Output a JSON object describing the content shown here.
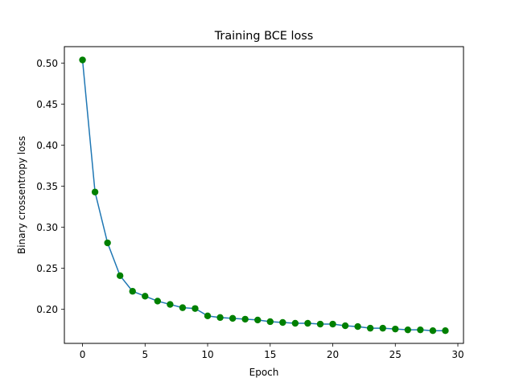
{
  "chart_data": {
    "type": "line",
    "title": "Training BCE loss",
    "xlabel": "Epoch",
    "ylabel": "Binary crossentropy loss",
    "xlim": [
      -1.45,
      30.45
    ],
    "ylim": [
      0.1585,
      0.5202
    ],
    "xticks": [
      0,
      5,
      10,
      15,
      20,
      25,
      30
    ],
    "xtick_labels": [
      "0",
      "5",
      "10",
      "15",
      "20",
      "25",
      "30"
    ],
    "yticks": [
      0.2,
      0.25,
      0.3,
      0.35,
      0.4,
      0.45,
      0.5
    ],
    "ytick_labels": [
      "0.20",
      "0.25",
      "0.30",
      "0.35",
      "0.40",
      "0.45",
      "0.50"
    ],
    "grid": false,
    "legend": "none",
    "line_color": "#1f77b4",
    "marker_color": "#008000",
    "series": [
      {
        "x": [
          0,
          1,
          2,
          3,
          4,
          5,
          6,
          7,
          8,
          9,
          10,
          11,
          12,
          13,
          14,
          15,
          16,
          17,
          18,
          19,
          20,
          21,
          22,
          23,
          24,
          25,
          26,
          27,
          28,
          29
        ],
        "values": [
          0.504,
          0.343,
          0.281,
          0.241,
          0.222,
          0.216,
          0.21,
          0.206,
          0.202,
          0.201,
          0.192,
          0.19,
          0.189,
          0.188,
          0.187,
          0.185,
          0.184,
          0.183,
          0.183,
          0.182,
          0.182,
          0.18,
          0.179,
          0.177,
          0.177,
          0.176,
          0.175,
          0.175,
          0.174,
          0.174
        ]
      }
    ]
  }
}
